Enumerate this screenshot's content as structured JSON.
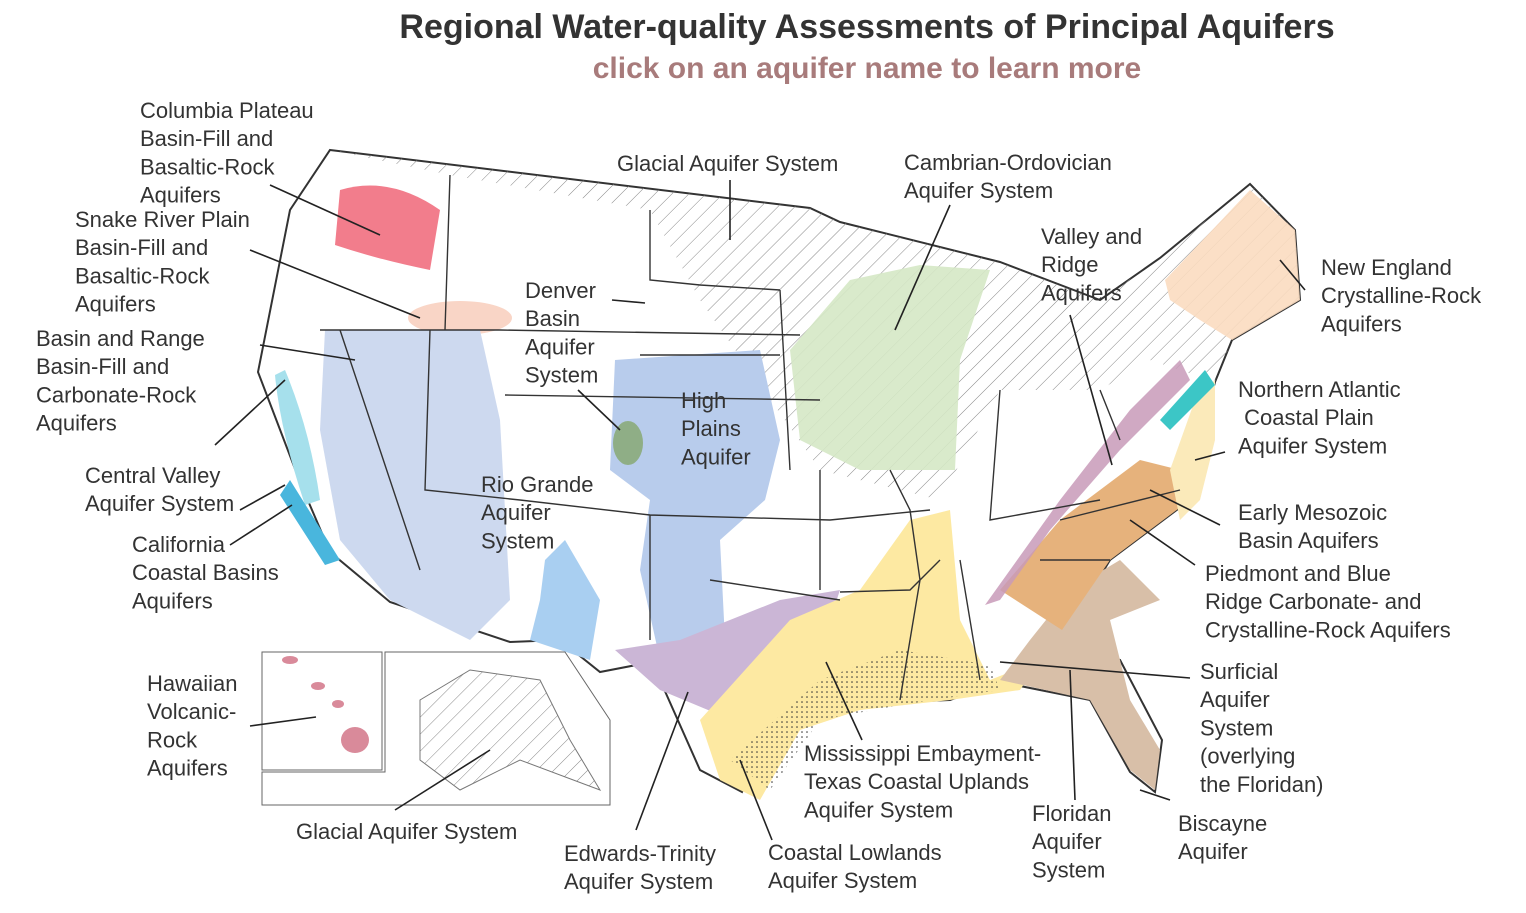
{
  "header": {
    "title": "Regional Water-quality Assessments of Principal Aquifers",
    "subtitle": "click on an aquifer name to learn more"
  },
  "labels": [
    {
      "lines": [
        "Columbia Plateau",
        "Basin-Fill and",
        "Basaltic-Rock",
        "Aquifers"
      ]
    },
    {
      "lines": [
        "Snake River Plain",
        "Basin-Fill and",
        "Basaltic-Rock",
        "Aquifers"
      ]
    },
    {
      "lines": [
        "Basin and Range",
        "Basin-Fill and",
        "Carbonate-Rock",
        "Aquifers"
      ]
    },
    {
      "lines": [
        "Central Valley",
        "Aquifer System"
      ]
    },
    {
      "lines": [
        "California",
        "Coastal Basins",
        "Aquifers"
      ]
    },
    {
      "lines": [
        "Hawaiian",
        "Volcanic-",
        "Rock",
        "Aquifers"
      ]
    },
    {
      "lines": [
        "Glacial Aquifer System"
      ]
    },
    {
      "lines": [
        "Glacial Aquifer System"
      ]
    },
    {
      "lines": [
        "Denver",
        "Basin",
        "Aquifer",
        "System"
      ]
    },
    {
      "lines": [
        "High",
        "Plains",
        "Aquifer"
      ]
    },
    {
      "lines": [
        "Rio Grande",
        "Aquifer",
        "System"
      ]
    },
    {
      "lines": [
        "Cambrian-Ordovician",
        "Aquifer System"
      ]
    },
    {
      "lines": [
        "Valley and",
        "Ridge",
        "Aquifers"
      ]
    },
    {
      "lines": [
        "New England",
        "Crystalline-Rock",
        "Aquifers"
      ]
    },
    {
      "lines": [
        "Northern Atlantic",
        " Coastal Plain",
        "Aquifer System"
      ]
    },
    {
      "lines": [
        "Early Mesozoic",
        "Basin Aquifers"
      ]
    },
    {
      "lines": [
        "Piedmont and Blue",
        "Ridge Carbonate- and",
        "Crystalline-Rock Aquifers"
      ]
    },
    {
      "lines": [
        "Surficial",
        "Aquifer",
        "System",
        "(overlying",
        "the Floridan)"
      ]
    },
    {
      "lines": [
        "Biscayne",
        "Aquifer"
      ]
    },
    {
      "lines": [
        "Floridan",
        "Aquifer",
        "System"
      ]
    },
    {
      "lines": [
        "Mississippi Embayment-",
        "Texas Coastal Uplands",
        "Aquifer System"
      ]
    },
    {
      "lines": [
        "Coastal Lowlands",
        "Aquifer System"
      ]
    },
    {
      "lines": [
        "Edwards-Trinity",
        "Aquifer System"
      ]
    }
  ]
}
